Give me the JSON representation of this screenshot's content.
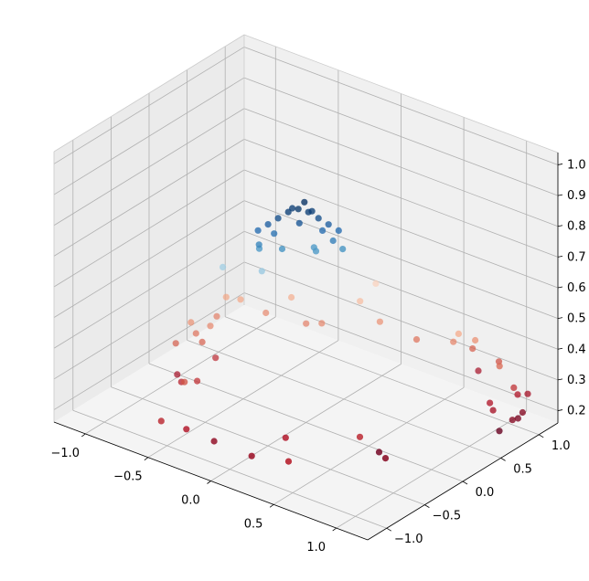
{
  "chart_data": {
    "type": "scatter3d",
    "title": "",
    "xlabel": "",
    "ylabel": "",
    "zlabel": "",
    "xlim": [
      -1.25,
      1.25
    ],
    "ylim": [
      -1.25,
      1.25
    ],
    "zlim": [
      0.16,
      1.04
    ],
    "x_ticks": [
      "−1.0",
      "−0.5",
      "0.0",
      "0.5",
      "1.0"
    ],
    "y_ticks": [
      "−1.0",
      "−0.5",
      "0.0",
      "0.5",
      "1.0"
    ],
    "z_ticks": [
      "0.2",
      "0.3",
      "0.4",
      "0.5",
      "0.6",
      "0.7",
      "0.8",
      "0.9",
      "1.0"
    ],
    "colormap": "RdBu",
    "color_by": "z",
    "grid": true,
    "points": [
      {
        "x": -0.48,
        "y": -1.11,
        "z": 0.26
      },
      {
        "x": -0.34,
        "y": -1.01,
        "z": 0.24
      },
      {
        "x": -0.18,
        "y": -0.91,
        "z": 0.21
      },
      {
        "x": 0.22,
        "y": -0.63,
        "z": 0.24
      },
      {
        "x": 0.63,
        "y": -0.33,
        "z": 0.26
      },
      {
        "x": 0.65,
        "y": -0.11,
        "z": 0.18
      },
      {
        "x": 0.78,
        "y": -0.24,
        "z": 0.2
      },
      {
        "x": 0.45,
        "y": -0.97,
        "z": 0.25
      },
      {
        "x": 0.15,
        "y": -0.96,
        "z": 0.22
      },
      {
        "x": -0.58,
        "y": -0.64,
        "z": 0.3
      },
      {
        "x": -0.6,
        "y": -0.44,
        "z": 0.27
      },
      {
        "x": -0.72,
        "y": -0.45,
        "z": 0.25
      },
      {
        "x": -0.85,
        "y": -0.29,
        "z": 0.23
      },
      {
        "x": -0.91,
        "y": -0.21,
        "z": 0.31
      },
      {
        "x": -0.84,
        "y": -0.06,
        "z": 0.33
      },
      {
        "x": -0.79,
        "y": -0.06,
        "z": 0.31
      },
      {
        "x": -0.72,
        "y": 0.0,
        "z": 0.26
      },
      {
        "x": -0.88,
        "y": -0.06,
        "z": 0.36
      },
      {
        "x": -0.78,
        "y": 0.03,
        "z": 0.35
      },
      {
        "x": -0.85,
        "y": 0.23,
        "z": 0.34
      },
      {
        "x": -0.86,
        "y": 0.37,
        "z": 0.38
      },
      {
        "x": -0.77,
        "y": 0.41,
        "z": 0.38
      },
      {
        "x": -0.61,
        "y": 0.48,
        "z": 0.35
      },
      {
        "x": -0.51,
        "y": 0.65,
        "z": 0.39
      },
      {
        "x": -0.35,
        "y": 0.58,
        "z": 0.34
      },
      {
        "x": -0.25,
        "y": 0.62,
        "z": 0.35
      },
      {
        "x": -0.09,
        "y": 0.86,
        "z": 0.41
      },
      {
        "x": -0.08,
        "y": 1.05,
        "z": 0.44
      },
      {
        "x": 0.05,
        "y": 0.89,
        "z": 0.36
      },
      {
        "x": 0.3,
        "y": 0.96,
        "z": 0.33
      },
      {
        "x": 0.55,
        "y": 1.03,
        "z": 0.35
      },
      {
        "x": 0.6,
        "y": 1.2,
        "z": 0.31
      },
      {
        "x": 0.61,
        "y": 1.26,
        "z": 0.23
      },
      {
        "x": 0.67,
        "y": 1.12,
        "z": 0.36
      },
      {
        "x": 0.81,
        "y": 1.2,
        "z": 0.3
      },
      {
        "x": 0.61,
        "y": 1.0,
        "z": 0.39
      },
      {
        "x": 0.9,
        "y": 1.06,
        "z": 0.32
      },
      {
        "x": 1.02,
        "y": 1.05,
        "z": 0.27
      },
      {
        "x": 1.02,
        "y": 1.1,
        "z": 0.24
      },
      {
        "x": 1.04,
        "y": 1.2,
        "z": 0.23
      },
      {
        "x": 1.09,
        "y": 1.05,
        "z": 0.2
      },
      {
        "x": 1.09,
        "y": 0.99,
        "z": 0.19
      },
      {
        "x": 1.1,
        "y": 0.9,
        "z": 0.2
      },
      {
        "x": 1.05,
        "y": 0.81,
        "z": 0.17
      },
      {
        "x": 1.0,
        "y": 0.81,
        "z": 0.23
      },
      {
        "x": 0.95,
        "y": 0.85,
        "z": 0.24
      },
      {
        "x": -0.2,
        "y": -0.3,
        "z": 0.8
      },
      {
        "x": -0.15,
        "y": -0.25,
        "z": 0.82
      },
      {
        "x": -0.1,
        "y": -0.2,
        "z": 0.84
      },
      {
        "x": -0.05,
        "y": -0.15,
        "z": 0.86
      },
      {
        "x": 0.0,
        "y": -0.1,
        "z": 0.87
      },
      {
        "x": 0.05,
        "y": -0.05,
        "z": 0.86
      },
      {
        "x": 0.1,
        "y": 0.0,
        "z": 0.84
      },
      {
        "x": 0.15,
        "y": 0.05,
        "z": 0.82
      },
      {
        "x": 0.2,
        "y": 0.1,
        "z": 0.8
      },
      {
        "x": -0.18,
        "y": -0.32,
        "z": 0.76
      },
      {
        "x": -0.12,
        "y": -0.22,
        "z": 0.79
      },
      {
        "x": 0.02,
        "y": -0.12,
        "z": 0.83
      },
      {
        "x": 0.12,
        "y": 0.02,
        "z": 0.8
      },
      {
        "x": 0.18,
        "y": 0.06,
        "z": 0.77
      },
      {
        "x": -0.06,
        "y": -0.08,
        "z": 0.86
      },
      {
        "x": 0.06,
        "y": -0.02,
        "z": 0.86
      },
      {
        "x": 0.0,
        "y": -0.02,
        "z": 0.88
      },
      {
        "x": -0.22,
        "y": -0.25,
        "z": 0.73
      },
      {
        "x": 0.22,
        "y": 0.12,
        "z": 0.74
      },
      {
        "x": -0.08,
        "y": -0.18,
        "z": 0.74
      },
      {
        "x": 0.08,
        "y": 0.0,
        "z": 0.73
      },
      {
        "x": 0.04,
        "y": 0.04,
        "z": 0.73
      },
      {
        "x": -0.45,
        "y": -0.35,
        "z": 0.65
      },
      {
        "x": -0.2,
        "y": -0.25,
        "z": 0.66
      }
    ]
  }
}
